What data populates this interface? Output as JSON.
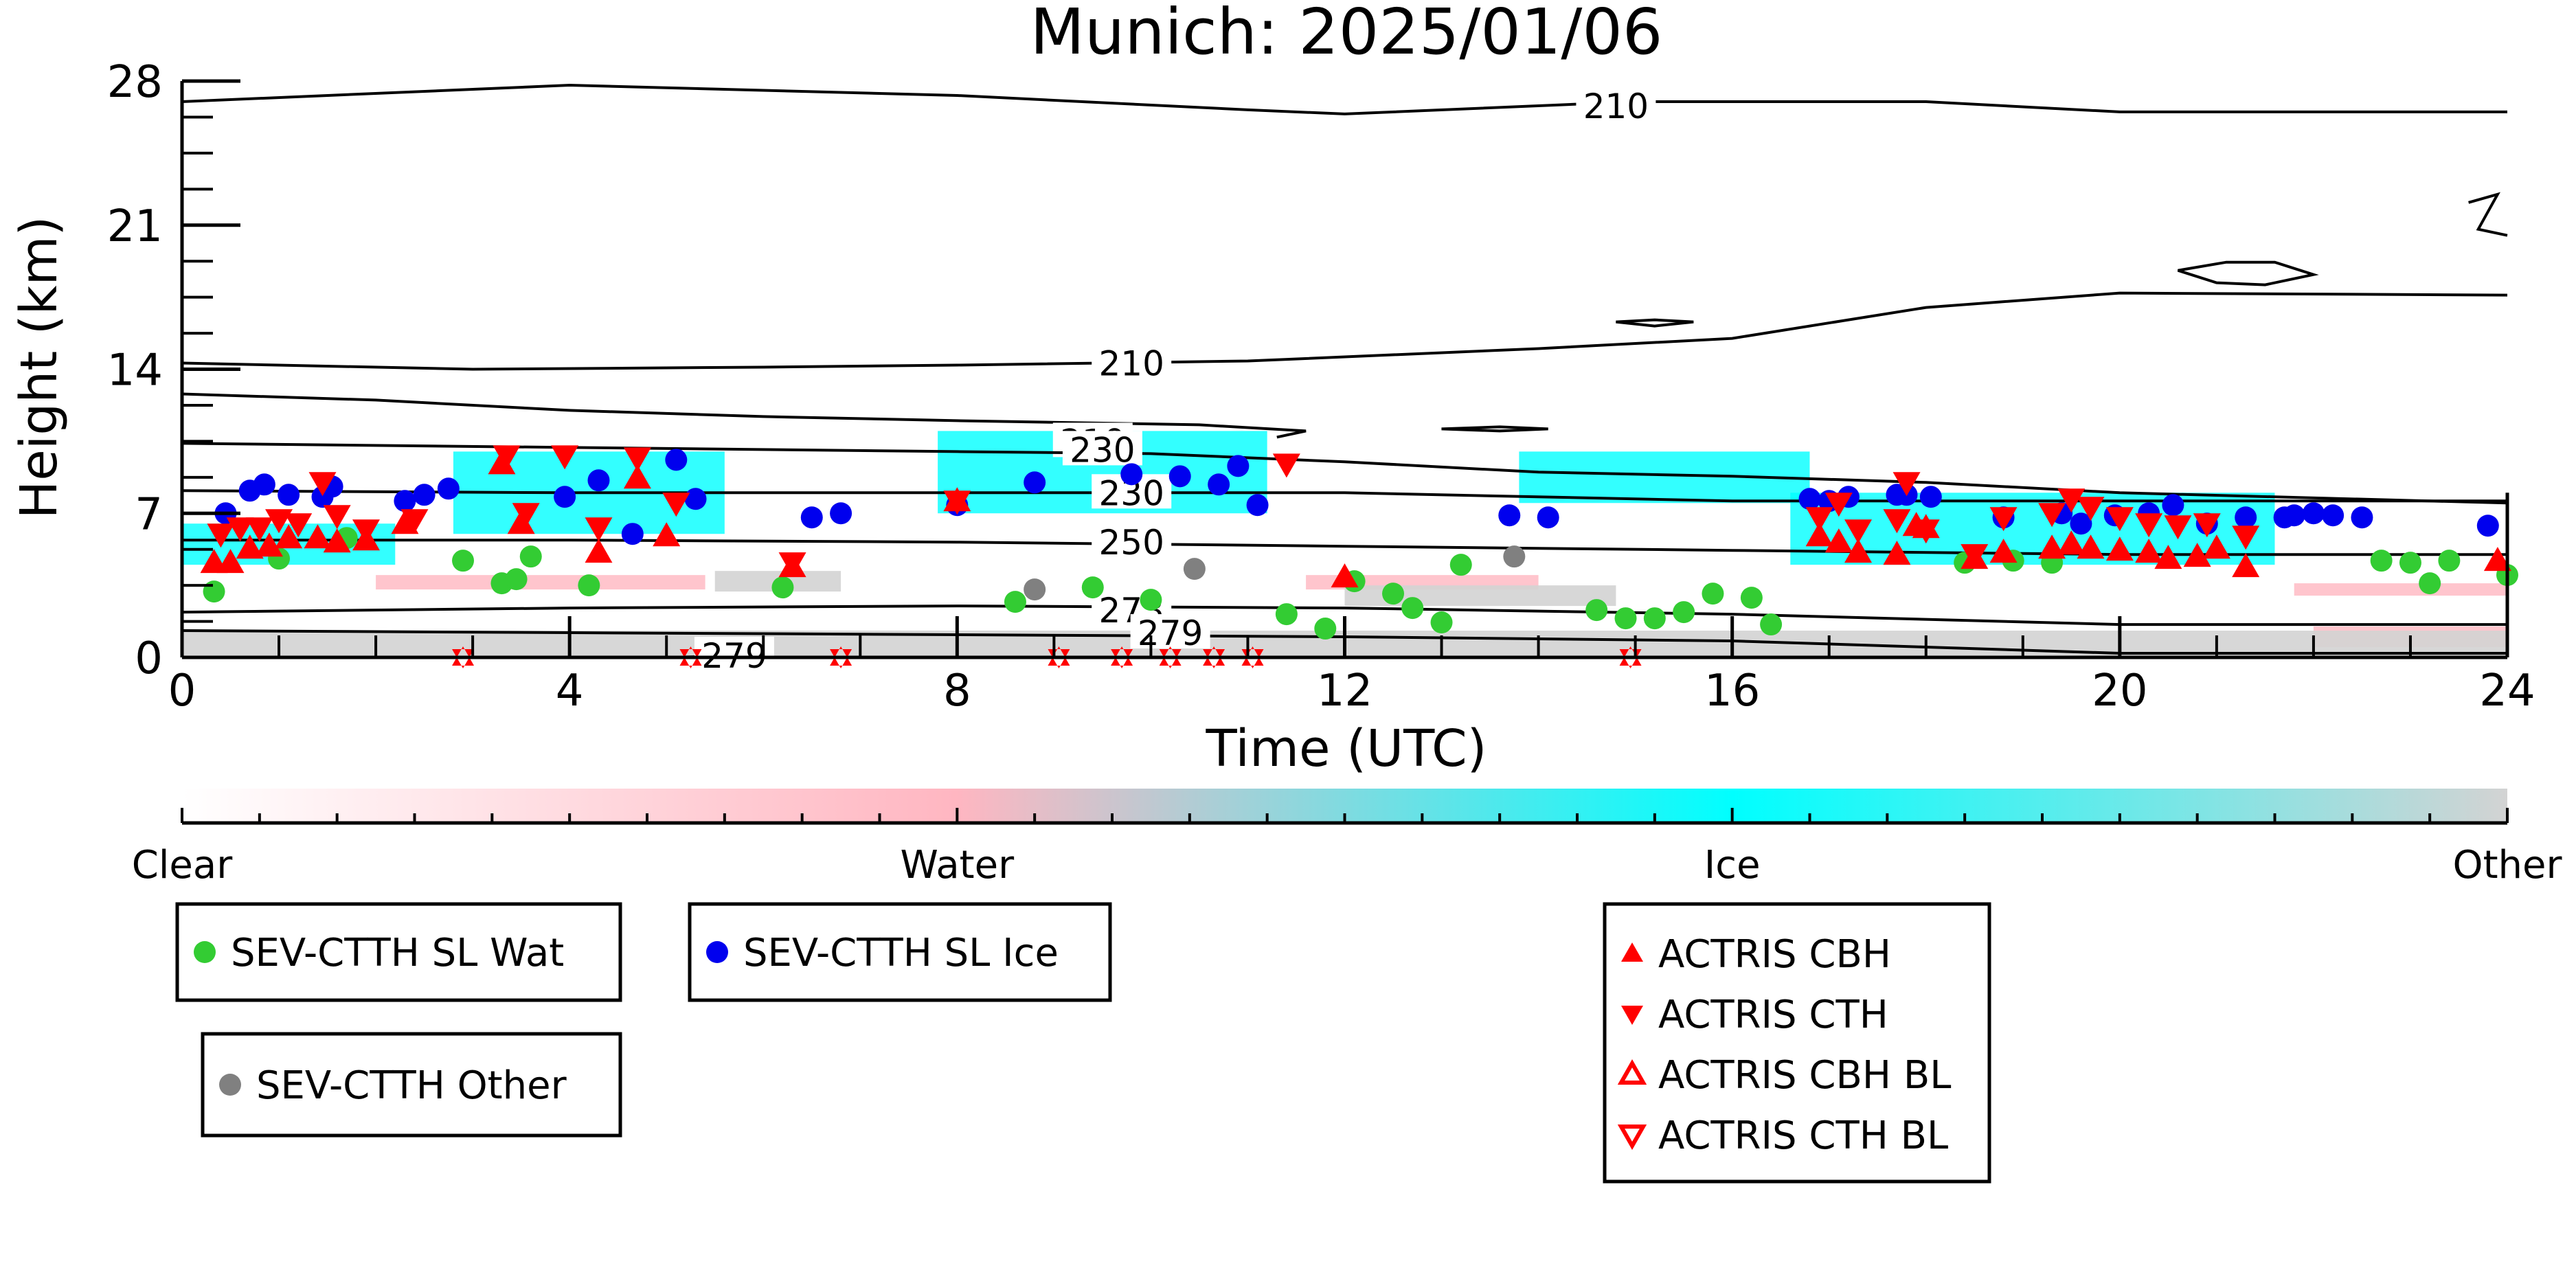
{
  "chart_data": {
    "type": "scatter",
    "title": "Munich: 2025/01/06",
    "xlabel": "Time (UTC)",
    "ylabel": "Height (km)",
    "xlim": [
      0,
      24
    ],
    "ylim": [
      0,
      28
    ],
    "xticks": [
      0,
      4,
      8,
      12,
      16,
      20,
      24
    ],
    "yticks": [
      0,
      7,
      14,
      21,
      28
    ],
    "grid": false,
    "background_field": {
      "name": "cloud phase",
      "colorbar": {
        "labels": [
          "Clear",
          "Water",
          "Ice",
          "Other"
        ],
        "colors": [
          "#ffffff",
          "#ffb6c1",
          "#00ffff",
          "#d3d3d3"
        ],
        "position": "below"
      },
      "regions": [
        {
          "class": "Ice",
          "x": [
            0.0,
            2.2
          ],
          "y": [
            4.5,
            6.5
          ]
        },
        {
          "class": "Ice",
          "x": [
            2.8,
            5.6
          ],
          "y": [
            6.0,
            10.0
          ]
        },
        {
          "class": "Ice",
          "x": [
            7.8,
            11.2
          ],
          "y": [
            7.0,
            11.0
          ]
        },
        {
          "class": "Ice",
          "x": [
            13.8,
            16.8
          ],
          "y": [
            7.5,
            10.0
          ]
        },
        {
          "class": "Ice",
          "x": [
            16.6,
            21.6
          ],
          "y": [
            4.5,
            8.0
          ]
        },
        {
          "class": "Water",
          "x": [
            2.0,
            5.4
          ],
          "y": [
            3.3,
            4.0
          ]
        },
        {
          "class": "Water",
          "x": [
            11.6,
            14.0
          ],
          "y": [
            3.3,
            4.0
          ]
        },
        {
          "class": "Water",
          "x": [
            21.8,
            24.0
          ],
          "y": [
            3.0,
            3.6
          ]
        },
        {
          "class": "Water",
          "x": [
            22.0,
            24.0
          ],
          "y": [
            0.5,
            1.5
          ]
        },
        {
          "class": "Other",
          "x": [
            5.5,
            6.8
          ],
          "y": [
            3.2,
            4.2
          ]
        },
        {
          "class": "Other",
          "x": [
            12.0,
            14.8
          ],
          "y": [
            2.5,
            3.5
          ]
        },
        {
          "class": "Other",
          "x": [
            0.0,
            24.0
          ],
          "y": [
            0.0,
            1.3
          ]
        }
      ]
    },
    "contours": [
      {
        "label": "210",
        "points": [
          [
            0,
            27.0
          ],
          [
            4,
            27.8
          ],
          [
            8,
            27.3
          ],
          [
            11,
            26.6
          ],
          [
            12,
            26.4
          ],
          [
            15,
            27.0
          ],
          [
            18,
            27.0
          ],
          [
            20,
            26.5
          ],
          [
            24,
            26.5
          ]
        ],
        "label_at": [
          14.8,
          26.7
        ]
      },
      {
        "label": "210",
        "points": [
          [
            0,
            14.3
          ],
          [
            3,
            14.0
          ],
          [
            6,
            14.1
          ],
          [
            8,
            14.2
          ],
          [
            11,
            14.4
          ],
          [
            14,
            15.0
          ],
          [
            16,
            15.5
          ],
          [
            18,
            17.0
          ],
          [
            20,
            17.7
          ],
          [
            24,
            17.6
          ]
        ],
        "label_at": [
          9.8,
          14.2
        ]
      },
      {
        "label": "210",
        "points": [
          [
            0,
            12.8
          ],
          [
            2,
            12.5
          ],
          [
            4,
            12.0
          ],
          [
            6,
            11.7
          ],
          [
            8,
            11.5
          ],
          [
            10.5,
            11.3
          ],
          [
            11.6,
            11.0
          ],
          [
            11.3,
            10.7
          ]
        ],
        "label_at": [
          9.4,
          10.4
        ]
      },
      {
        "label": "230",
        "points": [
          [
            0,
            10.4
          ],
          [
            4,
            10.2
          ],
          [
            8,
            10.0
          ],
          [
            10,
            9.9
          ],
          [
            12,
            9.5
          ],
          [
            14,
            9.0
          ],
          [
            16,
            8.8
          ],
          [
            18,
            8.5
          ],
          [
            20,
            8.0
          ],
          [
            24,
            7.5
          ]
        ],
        "label_at": [
          9.5,
          10.0
        ]
      },
      {
        "label": "230",
        "points": [
          [
            0,
            8.1
          ],
          [
            4,
            8.0
          ],
          [
            8,
            8.0
          ],
          [
            12,
            8.0
          ],
          [
            16,
            7.6
          ],
          [
            20,
            7.6
          ],
          [
            24,
            7.6
          ]
        ],
        "label_at": [
          9.8,
          7.9
        ]
      },
      {
        "label": "250",
        "points": [
          [
            0,
            5.7
          ],
          [
            4,
            5.7
          ],
          [
            8,
            5.6
          ],
          [
            12,
            5.4
          ],
          [
            16,
            5.2
          ],
          [
            20,
            5.0
          ],
          [
            24,
            5.0
          ]
        ],
        "label_at": [
          9.8,
          5.5
        ]
      },
      {
        "label": "273",
        "points": [
          [
            0,
            2.2
          ],
          [
            4,
            2.4
          ],
          [
            8,
            2.5
          ],
          [
            12,
            2.4
          ],
          [
            16,
            2.1
          ],
          [
            20,
            1.6
          ],
          [
            24,
            1.6
          ]
        ],
        "label_at": [
          9.8,
          2.2
        ]
      },
      {
        "label": "279",
        "points": [
          [
            0,
            1.3
          ],
          [
            4,
            1.2
          ],
          [
            8,
            1.1
          ],
          [
            12,
            1.0
          ],
          [
            16,
            0.8
          ],
          [
            18,
            0.5
          ],
          [
            20,
            0.2
          ],
          [
            24,
            0.2
          ]
        ],
        "label_at": [
          10.2,
          1.1
        ]
      },
      {
        "label": "279",
        "points": [
          [
            5.0,
            0.0
          ],
          [
            6.0,
            0.1
          ]
        ],
        "label_at": [
          5.7,
          0.0
        ]
      },
      {
        "label": "",
        "closed": true,
        "points": [
          [
            20.6,
            18.8
          ],
          [
            21.1,
            19.2
          ],
          [
            21.6,
            19.2
          ],
          [
            22.0,
            18.6
          ],
          [
            21.5,
            18.1
          ],
          [
            21.0,
            18.2
          ],
          [
            20.6,
            18.8
          ]
        ]
      },
      {
        "label": "",
        "closed": true,
        "points": [
          [
            14.8,
            16.3
          ],
          [
            15.2,
            16.4
          ],
          [
            15.6,
            16.3
          ],
          [
            15.2,
            16.1
          ],
          [
            14.8,
            16.3
          ]
        ]
      },
      {
        "label": "",
        "closed": true,
        "points": [
          [
            13.0,
            11.1
          ],
          [
            13.6,
            11.2
          ],
          [
            14.1,
            11.1
          ],
          [
            13.6,
            11.0
          ],
          [
            13.0,
            11.1
          ]
        ]
      },
      {
        "label": "",
        "points": [
          [
            23.6,
            22.1
          ],
          [
            23.9,
            22.5
          ],
          [
            23.7,
            20.8
          ],
          [
            24.0,
            20.5
          ]
        ]
      }
    ],
    "series": [
      {
        "name": "SEV-CTTH SL Wat",
        "marker": "circle",
        "color": "#33cc33",
        "x": [
          0.33,
          1.0,
          1.7,
          2.9,
          3.3,
          3.45,
          3.6,
          4.2,
          6.2,
          8.6,
          9.4,
          10.0,
          11.4,
          11.8,
          12.1,
          12.5,
          12.7,
          13.0,
          13.2,
          14.6,
          14.9,
          15.2,
          15.5,
          15.8,
          16.2,
          16.4,
          18.4,
          18.9,
          19.3,
          22.7,
          23.0,
          23.2,
          23.4,
          24.0
        ],
        "y": [
          3.2,
          4.8,
          5.8,
          4.7,
          3.6,
          3.8,
          4.9,
          3.5,
          3.4,
          2.7,
          3.4,
          2.8,
          2.1,
          1.4,
          3.7,
          3.1,
          2.4,
          1.7,
          4.5,
          2.3,
          1.9,
          1.9,
          2.2,
          3.1,
          2.9,
          1.6,
          4.6,
          4.7,
          4.6,
          4.7,
          4.6,
          3.6,
          4.7,
          4.0
        ]
      },
      {
        "name": "SEV-CTTH SL Ice",
        "marker": "circle",
        "color": "#0000ee",
        "x": [
          0.45,
          0.7,
          0.85,
          1.1,
          1.45,
          1.55,
          2.3,
          2.5,
          2.75,
          3.95,
          4.3,
          4.65,
          5.1,
          5.3,
          6.5,
          6.8,
          8.0,
          8.8,
          9.8,
          10.3,
          10.7,
          10.9,
          11.1,
          13.7,
          14.1,
          16.8,
          17.0,
          17.2,
          17.7,
          17.8,
          18.05,
          18.8,
          19.4,
          19.6,
          19.95,
          20.3,
          20.55,
          20.9,
          21.3,
          21.7,
          21.8,
          22.0,
          22.2,
          22.5,
          23.8
        ],
        "y": [
          7.0,
          8.1,
          8.4,
          7.9,
          7.8,
          8.3,
          7.6,
          7.9,
          8.2,
          7.8,
          8.6,
          6.0,
          9.6,
          7.7,
          6.8,
          7.0,
          7.4,
          8.5,
          8.9,
          8.8,
          8.4,
          9.3,
          7.4,
          6.9,
          6.8,
          7.7,
          7.6,
          7.8,
          7.9,
          7.9,
          7.8,
          6.8,
          7.0,
          6.5,
          6.9,
          7.0,
          7.4,
          6.5,
          6.8,
          6.8,
          6.9,
          7.0,
          6.9,
          6.8,
          6.4
        ]
      },
      {
        "name": "SEV-CTTH Other",
        "marker": "circle",
        "color": "#808080",
        "x": [
          8.8,
          10.45,
          13.75
        ],
        "y": [
          3.3,
          4.3,
          4.9
        ]
      },
      {
        "name": "ACTRIS CBH",
        "marker": "triangle-up",
        "color": "#ff0000",
        "filled": true,
        "x": [
          0.33,
          0.5,
          0.7,
          0.9,
          1.1,
          1.4,
          1.6,
          1.9,
          2.3,
          3.3,
          3.5,
          4.3,
          4.7,
          5.0,
          6.3,
          8.0,
          12.0,
          16.9,
          17.1,
          17.3,
          17.7,
          17.9,
          18.0,
          18.5,
          18.8,
          19.3,
          19.5,
          19.7,
          20.0,
          20.3,
          20.5,
          20.8,
          21.0,
          21.3,
          23.9
        ],
        "y": [
          4.6,
          4.6,
          5.3,
          5.4,
          5.8,
          5.8,
          5.6,
          5.7,
          6.5,
          9.4,
          6.5,
          5.1,
          8.7,
          5.9,
          4.4,
          7.6,
          3.9,
          5.9,
          5.6,
          5.1,
          5.0,
          6.4,
          6.3,
          4.8,
          5.1,
          5.3,
          5.5,
          5.3,
          5.2,
          5.1,
          4.8,
          4.9,
          5.3,
          4.4,
          4.7
        ]
      },
      {
        "name": "ACTRIS CTH",
        "marker": "triangle-down",
        "color": "#ff0000",
        "filled": true,
        "x": [
          0.4,
          0.6,
          0.8,
          1.0,
          1.2,
          1.45,
          1.6,
          1.9,
          2.4,
          3.35,
          3.55,
          3.95,
          4.3,
          4.7,
          5.1,
          6.3,
          8.0,
          11.4,
          16.9,
          17.1,
          17.3,
          17.7,
          17.8,
          18.0,
          18.5,
          18.8,
          19.3,
          19.5,
          19.7,
          20.0,
          20.3,
          20.6,
          20.9,
          21.3
        ],
        "y": [
          6.0,
          6.3,
          6.3,
          6.7,
          6.5,
          8.5,
          6.9,
          6.2,
          6.7,
          9.8,
          7.0,
          9.8,
          6.3,
          9.7,
          7.5,
          4.6,
          7.6,
          9.4,
          6.8,
          7.5,
          6.2,
          6.7,
          8.5,
          6.2,
          5.0,
          6.8,
          7.0,
          7.7,
          7.3,
          6.8,
          6.5,
          6.4,
          6.5,
          5.9
        ]
      },
      {
        "name": "ACTRIS CBH BL",
        "marker": "triangle-up",
        "color": "#ff0000",
        "filled": false,
        "x": [],
        "y": []
      },
      {
        "name": "ACTRIS CTH BL",
        "marker": "triangle-down",
        "color": "#ff0000",
        "filled": false,
        "x": [],
        "y": []
      },
      {
        "name": "ACTRIS ground",
        "marker": "triangle-up-down",
        "color": "#ff0000",
        "filled": true,
        "x": [
          2.9,
          5.25,
          6.8,
          9.05,
          9.7,
          10.2,
          10.65,
          11.05,
          14.95
        ],
        "y": [
          0.0,
          0.0,
          0.0,
          0.0,
          0.0,
          0.0,
          0.0,
          0.0,
          0.0
        ]
      }
    ],
    "legends": [
      {
        "placement": "below-left",
        "entries": [
          "SEV-CTTH SL Wat"
        ]
      },
      {
        "placement": "below-left",
        "entries": [
          "SEV-CTTH Other"
        ]
      },
      {
        "placement": "below-center-left",
        "entries": [
          "SEV-CTTH SL Ice"
        ]
      },
      {
        "placement": "below-center",
        "entries": [
          "ACTRIS CBH",
          "ACTRIS CTH",
          "ACTRIS CBH BL",
          "ACTRIS CTH BL"
        ]
      }
    ]
  }
}
